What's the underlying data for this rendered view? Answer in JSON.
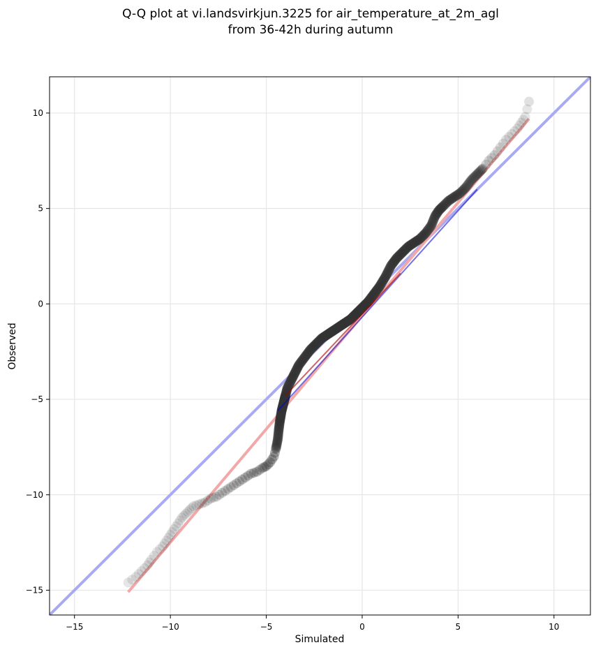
{
  "chart_data": {
    "type": "scatter",
    "title": [
      "Q-Q plot at vi.landsvirkjun.3225 for air_temperature_at_2m_agl",
      "from 36-42h during autumn"
    ],
    "xlabel": "Simulated",
    "ylabel": "Observed",
    "xlim": [
      -16.3,
      11.9
    ],
    "ylim": [
      -16.3,
      11.9
    ],
    "xticks": [
      -15,
      -10,
      -5,
      0,
      5,
      10
    ],
    "yticks": [
      -15,
      -10,
      -5,
      0,
      5,
      10
    ],
    "xtick_labels": [
      "−15",
      "−10",
      "−5",
      "0",
      "5",
      "10"
    ],
    "ytick_labels": [
      "−15",
      "−10",
      "−5",
      "0",
      "5",
      "10"
    ],
    "grid": true,
    "reference_line": {
      "x": [
        -16.3,
        11.9
      ],
      "y": [
        -16.3,
        11.9
      ],
      "color": "#aaaaf2"
    },
    "fit_line": {
      "x": [
        -12.2,
        8.7
      ],
      "y": [
        -15.1,
        9.7
      ],
      "color": "#f2a8a8"
    },
    "blue_segment": {
      "x": [
        -4.4,
        6.0
      ],
      "y": [
        -5.6,
        6.0
      ],
      "color": "#0000cc"
    },
    "red_segment": {
      "x": [
        -4.0,
        2.0
      ],
      "y": [
        -4.8,
        1.6
      ],
      "color": "#aa0000"
    },
    "quantiles": {
      "x": [
        -12.2,
        -11.8,
        -11.5,
        -11.2,
        -11.0,
        -10.7,
        -10.4,
        -10.2,
        -10.0,
        -9.8,
        -9.6,
        -9.4,
        -9.2,
        -9.0,
        -8.8,
        -8.5,
        -8.2,
        -7.9,
        -7.6,
        -7.3,
        -7.0,
        -6.7,
        -6.4,
        -6.1,
        -5.8,
        -5.5,
        -5.2,
        -5.0,
        -4.8,
        -4.6,
        -4.5,
        -4.4,
        -4.35,
        -4.3,
        -4.25,
        -4.2,
        -4.15,
        -4.1,
        -4.05,
        -4.0,
        -3.9,
        -3.7,
        -3.5,
        -3.3,
        -3.0,
        -2.7,
        -2.4,
        -2.1,
        -1.8,
        -1.5,
        -1.2,
        -0.9,
        -0.6,
        -0.3,
        0.0,
        0.3,
        0.6,
        0.9,
        1.2,
        1.5,
        1.8,
        2.1,
        2.4,
        2.7,
        3.0,
        3.3,
        3.6,
        3.8,
        4.0,
        4.2,
        4.5,
        4.8,
        5.1,
        5.4,
        5.7,
        6.0,
        6.3,
        6.6,
        6.9,
        7.2,
        7.5,
        7.8,
        8.1,
        8.3,
        8.5,
        8.7
      ],
      "y": [
        -14.6,
        -14.3,
        -14.0,
        -13.7,
        -13.4,
        -13.0,
        -12.7,
        -12.4,
        -12.1,
        -11.8,
        -11.5,
        -11.2,
        -11.0,
        -10.8,
        -10.6,
        -10.5,
        -10.4,
        -10.2,
        -10.1,
        -9.9,
        -9.7,
        -9.5,
        -9.3,
        -9.1,
        -8.9,
        -8.8,
        -8.6,
        -8.5,
        -8.3,
        -8.0,
        -7.6,
        -7.1,
        -6.6,
        -6.2,
        -5.9,
        -5.6,
        -5.4,
        -5.2,
        -5.0,
        -4.8,
        -4.4,
        -4.0,
        -3.6,
        -3.2,
        -2.8,
        -2.4,
        -2.1,
        -1.8,
        -1.6,
        -1.4,
        -1.2,
        -1.0,
        -0.8,
        -0.5,
        -0.2,
        0.1,
        0.5,
        0.9,
        1.4,
        2.0,
        2.4,
        2.7,
        3.0,
        3.2,
        3.4,
        3.7,
        4.1,
        4.6,
        4.9,
        5.1,
        5.4,
        5.6,
        5.8,
        6.1,
        6.5,
        6.8,
        7.1,
        7.5,
        7.8,
        8.2,
        8.6,
        8.9,
        9.2,
        9.5,
        9.8,
        10.6
      ]
    }
  }
}
